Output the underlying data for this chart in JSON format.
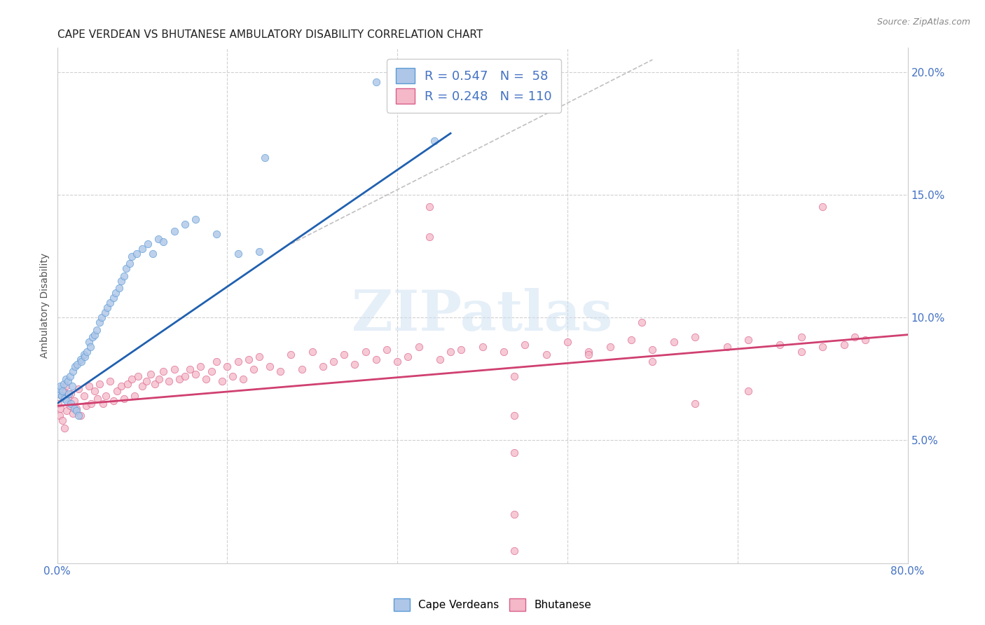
{
  "title": "CAPE VERDEAN VS BHUTANESE AMBULATORY DISABILITY CORRELATION CHART",
  "source": "Source: ZipAtlas.com",
  "ylabel": "Ambulatory Disability",
  "watermark": "ZIPatlas",
  "xlim": [
    0.0,
    0.8
  ],
  "ylim": [
    0.0,
    0.21
  ],
  "xtick_positions": [
    0.0,
    0.16,
    0.32,
    0.48,
    0.64,
    0.8
  ],
  "xtick_labels": [
    "0.0%",
    "",
    "",
    "",
    "",
    "80.0%"
  ],
  "ytick_positions": [
    0.05,
    0.1,
    0.15,
    0.2
  ],
  "ytick_labels": [
    "5.0%",
    "10.0%",
    "15.0%",
    "20.0%"
  ],
  "cv_color": "#aec6e8",
  "cv_edge": "#5b9bd5",
  "bh_color": "#f4b8c8",
  "bh_edge": "#d95f8a",
  "trend_blue": "#2060b0",
  "trend_pink": "#d04070",
  "trend_gray": "#c0c0c0",
  "legend_blue_face": "#aec6e8",
  "legend_blue_edge": "#5b9bd5",
  "legend_pink_face": "#f4b8c8",
  "legend_pink_edge": "#d95f8a",
  "legend_blue_label": "R = 0.547   N =  58",
  "legend_pink_label": "R = 0.248   N = 110",
  "tick_color": "#4472c4",
  "bg_color": "#ffffff",
  "grid_color": "#d0d0d0",
  "title_fontsize": 11,
  "tick_fontsize": 11,
  "legend_fontsize": 13,
  "bottom_legend_labels": [
    "Cape Verdeans",
    "Bhutanese"
  ],
  "cv_trend_x": [
    0.0,
    0.37
  ],
  "cv_trend_y": [
    0.065,
    0.175
  ],
  "bh_trend_x": [
    0.0,
    0.8
  ],
  "bh_trend_y": [
    0.064,
    0.093
  ],
  "gray_trend_x": [
    0.22,
    0.56
  ],
  "gray_trend_y": [
    0.13,
    0.205
  ],
  "cv_scatter_x": [
    0.001,
    0.002,
    0.003,
    0.004,
    0.005,
    0.006,
    0.007,
    0.008,
    0.009,
    0.01,
    0.011,
    0.012,
    0.013,
    0.014,
    0.015,
    0.016,
    0.017,
    0.018,
    0.019,
    0.02,
    0.022,
    0.023,
    0.025,
    0.026,
    0.028,
    0.03,
    0.031,
    0.033,
    0.035,
    0.037,
    0.04,
    0.042,
    0.045,
    0.047,
    0.05,
    0.053,
    0.055,
    0.058,
    0.06,
    0.063,
    0.065,
    0.068,
    0.07,
    0.075,
    0.08,
    0.085,
    0.09,
    0.095,
    0.1,
    0.11,
    0.12,
    0.13,
    0.15,
    0.17,
    0.19,
    0.3,
    0.355,
    0.195
  ],
  "cv_scatter_y": [
    0.069,
    0.071,
    0.072,
    0.068,
    0.07,
    0.073,
    0.067,
    0.075,
    0.066,
    0.074,
    0.069,
    0.076,
    0.065,
    0.072,
    0.078,
    0.063,
    0.08,
    0.062,
    0.081,
    0.06,
    0.083,
    0.082,
    0.085,
    0.084,
    0.086,
    0.09,
    0.088,
    0.092,
    0.093,
    0.095,
    0.098,
    0.1,
    0.102,
    0.104,
    0.106,
    0.108,
    0.11,
    0.112,
    0.115,
    0.117,
    0.12,
    0.122,
    0.125,
    0.126,
    0.128,
    0.13,
    0.126,
    0.132,
    0.131,
    0.135,
    0.138,
    0.14,
    0.134,
    0.126,
    0.127,
    0.196,
    0.172,
    0.165
  ],
  "bh_scatter_x": [
    0.001,
    0.002,
    0.003,
    0.004,
    0.005,
    0.006,
    0.007,
    0.008,
    0.009,
    0.01,
    0.012,
    0.013,
    0.015,
    0.016,
    0.018,
    0.02,
    0.022,
    0.025,
    0.027,
    0.03,
    0.032,
    0.035,
    0.038,
    0.04,
    0.043,
    0.046,
    0.05,
    0.053,
    0.056,
    0.06,
    0.063,
    0.066,
    0.07,
    0.073,
    0.076,
    0.08,
    0.084,
    0.088,
    0.092,
    0.096,
    0.1,
    0.105,
    0.11,
    0.115,
    0.12,
    0.125,
    0.13,
    0.135,
    0.14,
    0.145,
    0.15,
    0.155,
    0.16,
    0.165,
    0.17,
    0.175,
    0.18,
    0.185,
    0.19,
    0.2,
    0.21,
    0.22,
    0.23,
    0.24,
    0.25,
    0.26,
    0.27,
    0.28,
    0.29,
    0.3,
    0.31,
    0.32,
    0.33,
    0.34,
    0.35,
    0.36,
    0.37,
    0.38,
    0.4,
    0.42,
    0.44,
    0.46,
    0.48,
    0.5,
    0.52,
    0.54,
    0.56,
    0.58,
    0.6,
    0.63,
    0.65,
    0.68,
    0.7,
    0.72,
    0.74,
    0.76,
    0.35,
    0.72,
    0.43,
    0.43,
    0.43,
    0.43,
    0.43,
    0.5,
    0.55,
    0.6,
    0.65,
    0.7,
    0.75,
    0.56
  ],
  "bh_scatter_y": [
    0.065,
    0.06,
    0.063,
    0.068,
    0.058,
    0.07,
    0.055,
    0.072,
    0.062,
    0.067,
    0.064,
    0.069,
    0.061,
    0.066,
    0.063,
    0.071,
    0.06,
    0.068,
    0.064,
    0.072,
    0.065,
    0.07,
    0.067,
    0.073,
    0.065,
    0.068,
    0.074,
    0.066,
    0.07,
    0.072,
    0.067,
    0.073,
    0.075,
    0.068,
    0.076,
    0.072,
    0.074,
    0.077,
    0.073,
    0.075,
    0.078,
    0.074,
    0.079,
    0.075,
    0.076,
    0.079,
    0.077,
    0.08,
    0.075,
    0.078,
    0.082,
    0.074,
    0.08,
    0.076,
    0.082,
    0.075,
    0.083,
    0.079,
    0.084,
    0.08,
    0.078,
    0.085,
    0.079,
    0.086,
    0.08,
    0.082,
    0.085,
    0.081,
    0.086,
    0.083,
    0.087,
    0.082,
    0.084,
    0.088,
    0.145,
    0.083,
    0.086,
    0.087,
    0.088,
    0.086,
    0.089,
    0.085,
    0.09,
    0.086,
    0.088,
    0.091,
    0.087,
    0.09,
    0.092,
    0.088,
    0.091,
    0.089,
    0.092,
    0.145,
    0.089,
    0.091,
    0.133,
    0.088,
    0.06,
    0.045,
    0.02,
    0.005,
    0.076,
    0.085,
    0.098,
    0.065,
    0.07,
    0.086,
    0.092,
    0.082
  ]
}
